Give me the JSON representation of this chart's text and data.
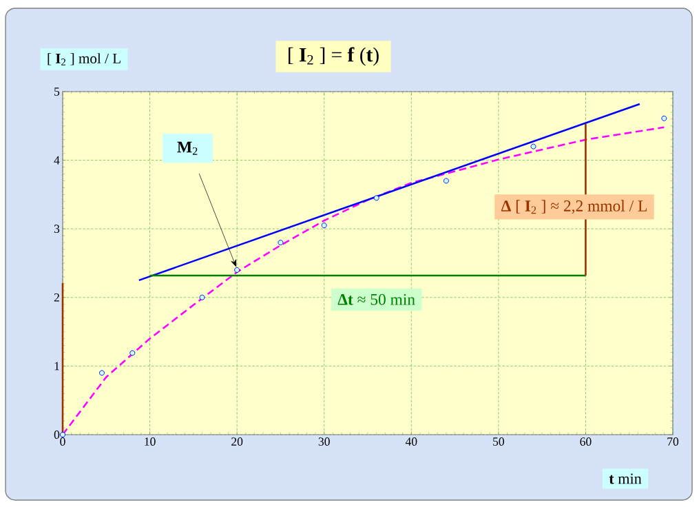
{
  "chart_data": {
    "type": "scatter",
    "title": "[ **I**$_{2}$ ] = **f** (**t**)",
    "xlabel": "**t** min",
    "ylabel": "[ **I**$_{2}$ ]  mol / L",
    "xlim": [
      0,
      70
    ],
    "ylim": [
      0,
      5
    ],
    "xticks": [
      0,
      10,
      20,
      30,
      40,
      50,
      60,
      70
    ],
    "yticks": [
      0,
      1,
      2,
      3,
      4,
      5
    ],
    "grid": true,
    "series": [
      {
        "marker": "circle",
        "color": "#0000ff",
        "x": [
          0,
          4.5,
          8,
          16,
          20,
          25,
          30,
          36,
          44,
          54,
          69
        ],
        "values": [
          0,
          0.9,
          1.19,
          2.0,
          2.4,
          2.8,
          3.05,
          3.45,
          3.7,
          4.2,
          4.61
        ]
      },
      {
        "type": "line",
        "line_style": "dashed",
        "color": "#ff00ff",
        "x": [
          0,
          5,
          10,
          15,
          20,
          25,
          30,
          35,
          40,
          50,
          60,
          69
        ],
        "values": [
          0,
          0.84,
          1.4,
          1.89,
          2.37,
          2.76,
          3.12,
          3.42,
          3.67,
          4.01,
          4.3,
          4.48
        ]
      },
      {
        "type": "line",
        "line_style": "solid",
        "color": "#0000ff",
        "x": [
          8.75,
          66.2
        ],
        "values": [
          2.25,
          4.82
        ]
      },
      {
        "type": "line",
        "line_style": "solid",
        "color": "#008000",
        "x": [
          10,
          60
        ],
        "values": [
          2.32,
          2.32
        ]
      },
      {
        "type": "line",
        "line_style": "solid",
        "color": "#993300",
        "x": [
          60,
          60
        ],
        "values": [
          2.32,
          4.53
        ]
      },
      {
        "type": "line",
        "line_style": "solid",
        "color": "#993300",
        "x": [
          0,
          0
        ],
        "values": [
          0,
          2.21
        ]
      }
    ],
    "annotations": [
      "**M**$_{2}$",
      "**Δt** ≈ 50 min",
      "**Δ** [ **I**$_{2}$ ] ≈ 2,2 mmol / L"
    ]
  }
}
